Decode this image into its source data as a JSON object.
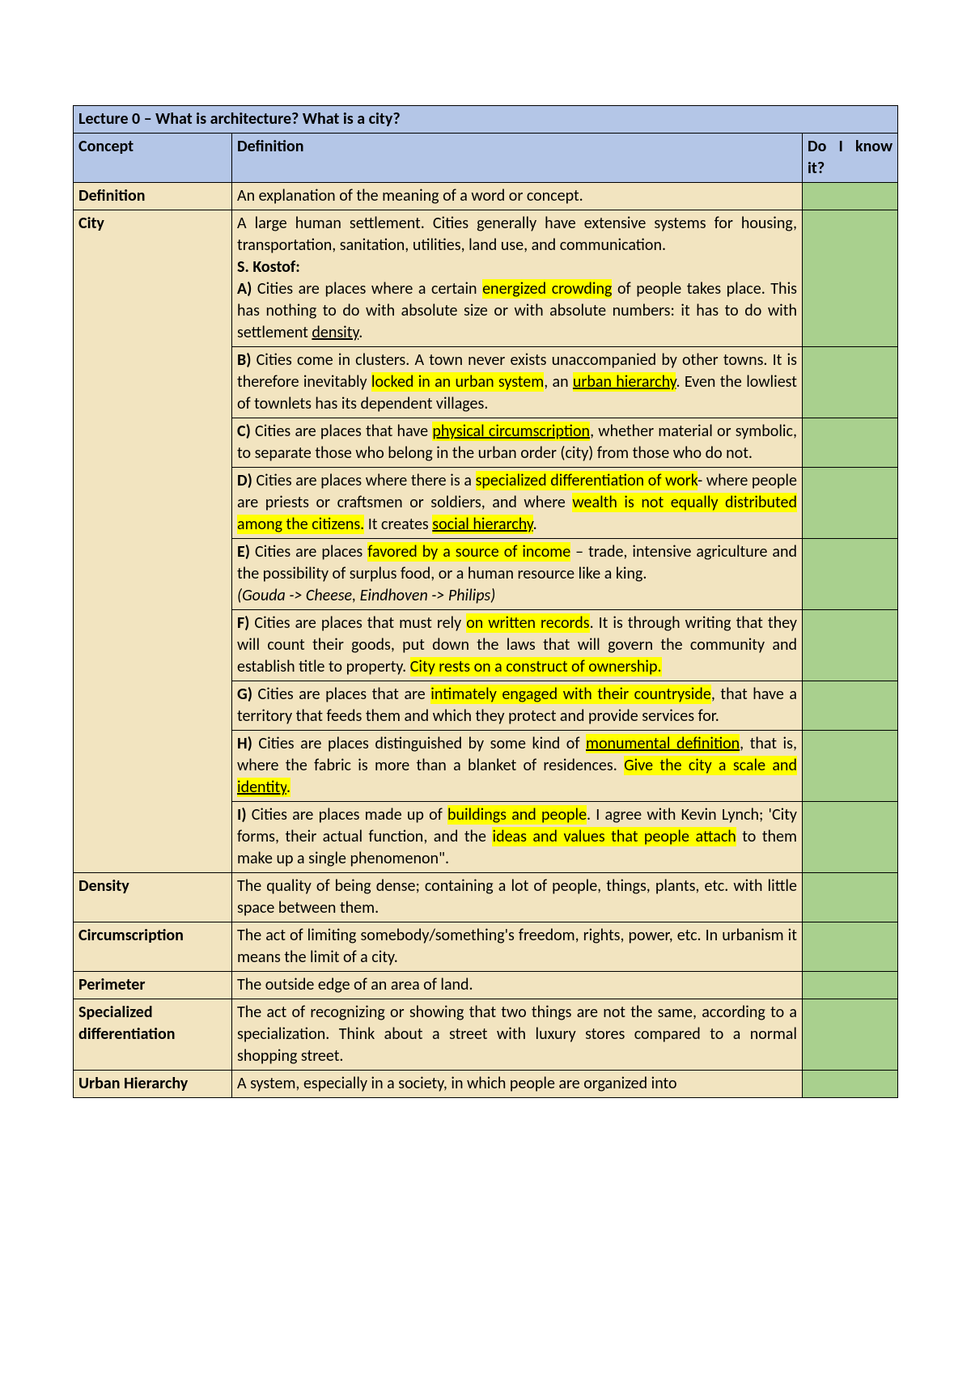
{
  "title": "Lecture 0 – What is architecture? What is a city?",
  "headers": {
    "concept": "Concept",
    "definition": "Definition",
    "know": "Do I know it?"
  },
  "rows": {
    "definition": {
      "concept": "Definition",
      "text": "An explanation of the meaning of a word or concept."
    },
    "city": {
      "concept": "City",
      "a_pre": "A large human settlement. Cities generally have extensive systems for housing, transportation, sanitation, utilities, land use, and communication.",
      "kostof": "S. Kostof:",
      "a_label": "A)",
      "a_t1": " Cities are places where a certain ",
      "a_h1": "energized crowding",
      "a_t2": " of people takes place. This has nothing to do with absolute size or with absolute numbers: it has to do with settlement ",
      "a_u1": "density",
      "a_t3": ".",
      "b_label": "B)",
      "b_t1": " Cities come in clusters. A town never exists unaccompanied by other towns. It is therefore inevitably ",
      "b_h1": "locked in an urban system",
      "b_t2": ", an ",
      "b_h2": "urban hierarchy",
      "b_t3": ". Even the lowliest of townlets has its dependent villages.",
      "c_label": "C)",
      "c_t1": " Cities are places that have ",
      "c_h1": "physical circumscription",
      "c_t2": ", whether material or symbolic, to separate those who belong in the urban order (city) from those who do not.",
      "d_label": "D)",
      "d_t1": " Cities are places where there is a ",
      "d_h1": "specialized differentiation of work",
      "d_t2": "- where people are priests or craftsmen or soldiers, and where ",
      "d_h2": "wealth is not equally distributed among the citizens.",
      "d_t3": " It creates ",
      "d_h3": "social hierarchy",
      "d_t4": ".",
      "e_label": "E)",
      "e_t1": " Cities are places ",
      "e_h1": "favored by a source of income",
      "e_t2": " – trade, intensive agriculture and the possibility of surplus food, or a human resource like a king.",
      "e_it": "(Gouda -> Cheese, Eindhoven -> Philips)",
      "f_label": "F)",
      "f_t1": " Cities are places that must rely ",
      "f_h1": "on written records",
      "f_t2": ". It is through writing that they will count their goods, put down the laws that will govern the community and establish title to property. ",
      "f_h2": "City rests on a construct of ownership.",
      "g_label": "G)",
      "g_t1": " Cities are places that are ",
      "g_h1": "intimately engaged with their countryside",
      "g_t2": ", that have a territory that feeds them and which they protect and provide services for.",
      "h_label": "H)",
      "h_t1": " Cities are places distinguished by some kind of ",
      "h_h1": "monumental definition",
      "h_t2": ", that is, where the fabric is more than a blanket of residences. ",
      "h_h2": "Give the city a scale and ",
      "h_h3": "identity",
      "h_h4": ".",
      "i_label": "I)",
      "i_t1": " Cities are places made up of ",
      "i_h1": "buildings and people",
      "i_t2": ". I agree with Kevin Lynch; 'City forms, their actual function, and the ",
      "i_h2": "ideas and values that people attach",
      "i_t3": " to them make up a single phenomenon\"."
    },
    "density": {
      "concept": "Density",
      "text": "The quality of being dense; containing a lot of people, things, plants, etc. with little space between them."
    },
    "circumscription": {
      "concept": "Circumscription",
      "text": "The act of limiting somebody/something's freedom, rights, power, etc. In urbanism it means the limit of a city."
    },
    "perimeter": {
      "concept": "Perimeter",
      "text": "The outside edge of an area of land."
    },
    "specdiff": {
      "concept": "Specialized differentiation",
      "text": "The act of recognizing or showing that two things are not the same, according to a specialization. Think about a street with luxury stores compared to a normal shopping street."
    },
    "urbanhier": {
      "concept": "Urban Hierarchy",
      "text": "A system, especially in a society, in which people are organized into"
    }
  }
}
